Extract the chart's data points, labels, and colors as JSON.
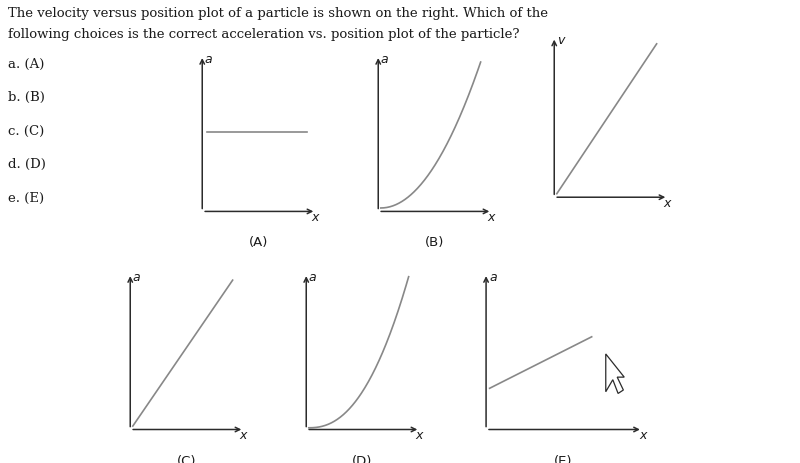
{
  "title_line1": "The velocity versus position plot of a particle is shown on the right. Which of the",
  "title_line2": "following choices is the correct acceleration vs. position plot of the particle?",
  "choices": [
    "a. (A)",
    "b. (B)",
    "c. (C)",
    "d. (D)",
    "e. (E)"
  ],
  "axis_color": "#2b2b2b",
  "line_color": "#888888",
  "text_color": "#1a1a1a",
  "bg_color": "#ffffff",
  "font_size_title": 9.5,
  "font_size_choices": 9.5,
  "font_size_axis_label": 9,
  "font_size_sublabel": 9.5
}
